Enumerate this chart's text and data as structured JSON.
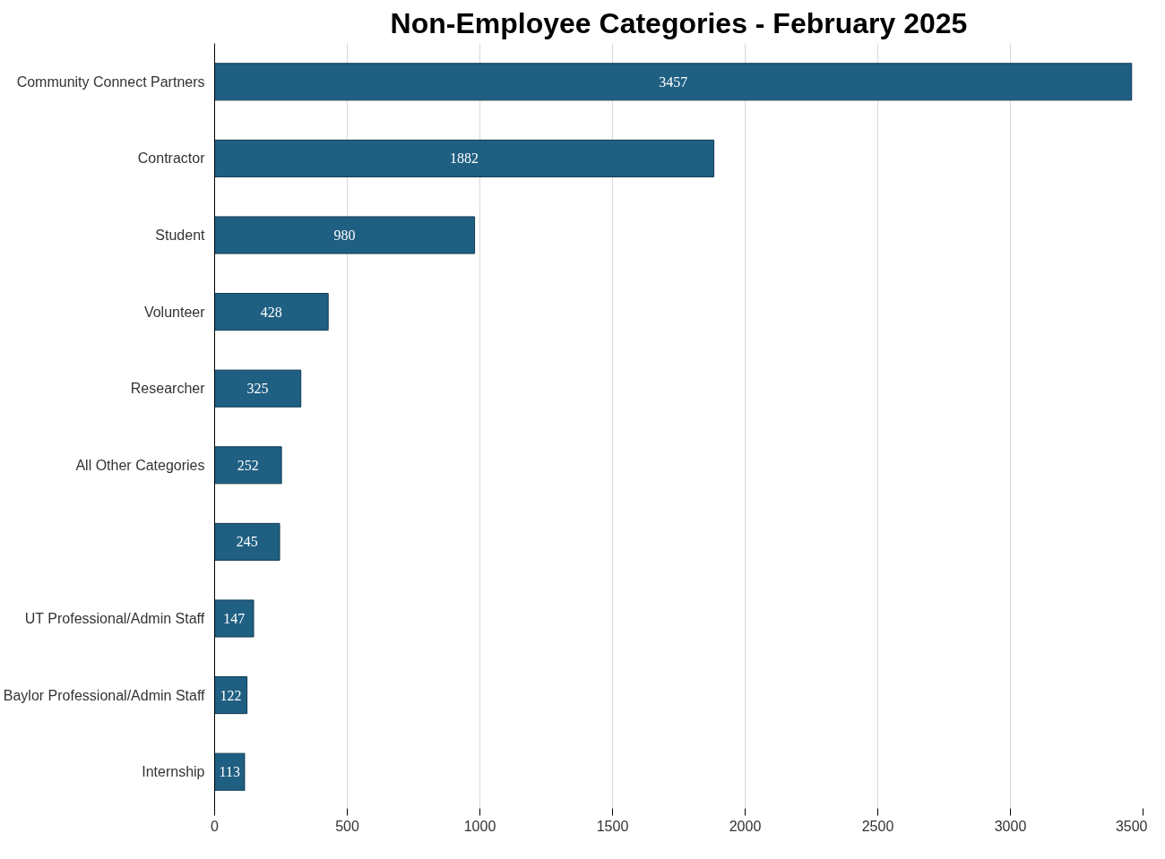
{
  "chart_data": {
    "type": "bar",
    "orientation": "horizontal",
    "title": "Non-Employee Categories - February 2025",
    "categories": [
      "Community Connect Partners",
      "Contractor",
      "Student",
      "Volunteer",
      "Researcher",
      "All Other Categories",
      null,
      "UT Professional/Admin Staff",
      "Baylor Professional/Admin Staff",
      "Internship"
    ],
    "values": [
      3457,
      1882,
      980,
      428,
      325,
      252,
      245,
      147,
      122,
      113
    ],
    "color": "#1f5f82",
    "data_labels": true,
    "xlim": [
      0,
      3500
    ],
    "xticks": [
      0,
      500,
      1000,
      1500,
      2000,
      2500,
      3000,
      3500
    ],
    "grid": "x"
  }
}
